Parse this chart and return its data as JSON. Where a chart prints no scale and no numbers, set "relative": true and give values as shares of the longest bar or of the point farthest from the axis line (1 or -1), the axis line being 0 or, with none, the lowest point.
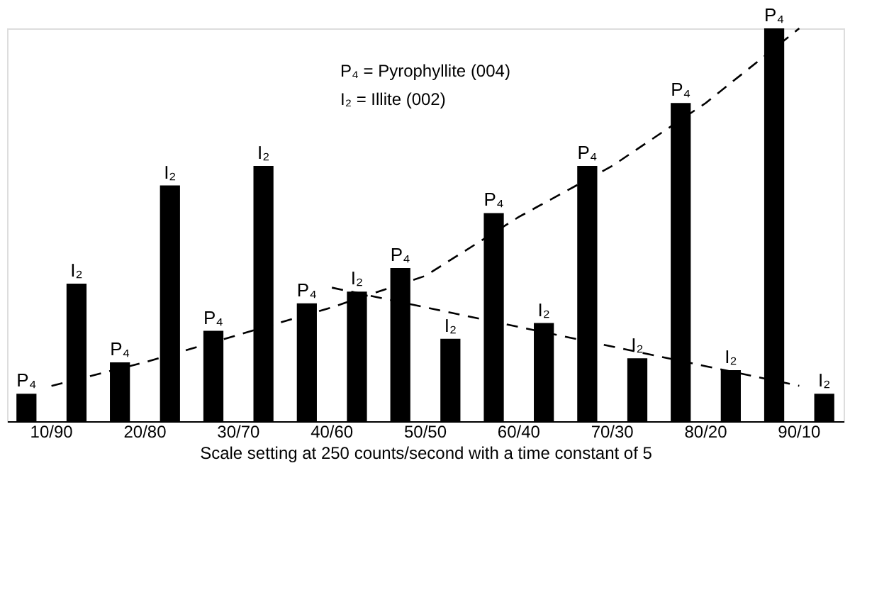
{
  "chart_data": {
    "type": "bar",
    "relative": true,
    "xlabel": "Scale setting at 250 counts/second with a time constant of 5",
    "annotations": [
      "P₄ = Pyrophyllite (004)",
      "I₂ = Illite (002)"
    ],
    "categories": [
      "10/90",
      "20/80",
      "30/70",
      "40/60",
      "50/50",
      "60/40",
      "70/30",
      "80/20",
      "90/10"
    ],
    "legend": false,
    "grid": false,
    "series": [
      {
        "name": "P₄",
        "color": "#000000",
        "values": [
          0.07,
          0.15,
          0.23,
          0.3,
          0.39,
          0.53,
          0.65,
          0.81,
          1.0
        ]
      },
      {
        "name": "I₂",
        "color": "#000000",
        "values": [
          0.35,
          0.6,
          0.65,
          0.33,
          0.21,
          0.25,
          0.16,
          0.13,
          0.07
        ]
      },
      {
        "color": "#000000",
        "type": "line",
        "line_style": "dashed",
        "values": [
          0.09,
          0.15,
          0.22,
          0.29,
          0.37,
          0.52,
          0.65,
          0.81,
          1.0
        ]
      },
      {
        "color": "#000000",
        "type": "line",
        "line_style": "dashed",
        "values": [
          null,
          null,
          null,
          0.34,
          0.29,
          0.24,
          0.19,
          0.14,
          0.09
        ]
      }
    ]
  }
}
